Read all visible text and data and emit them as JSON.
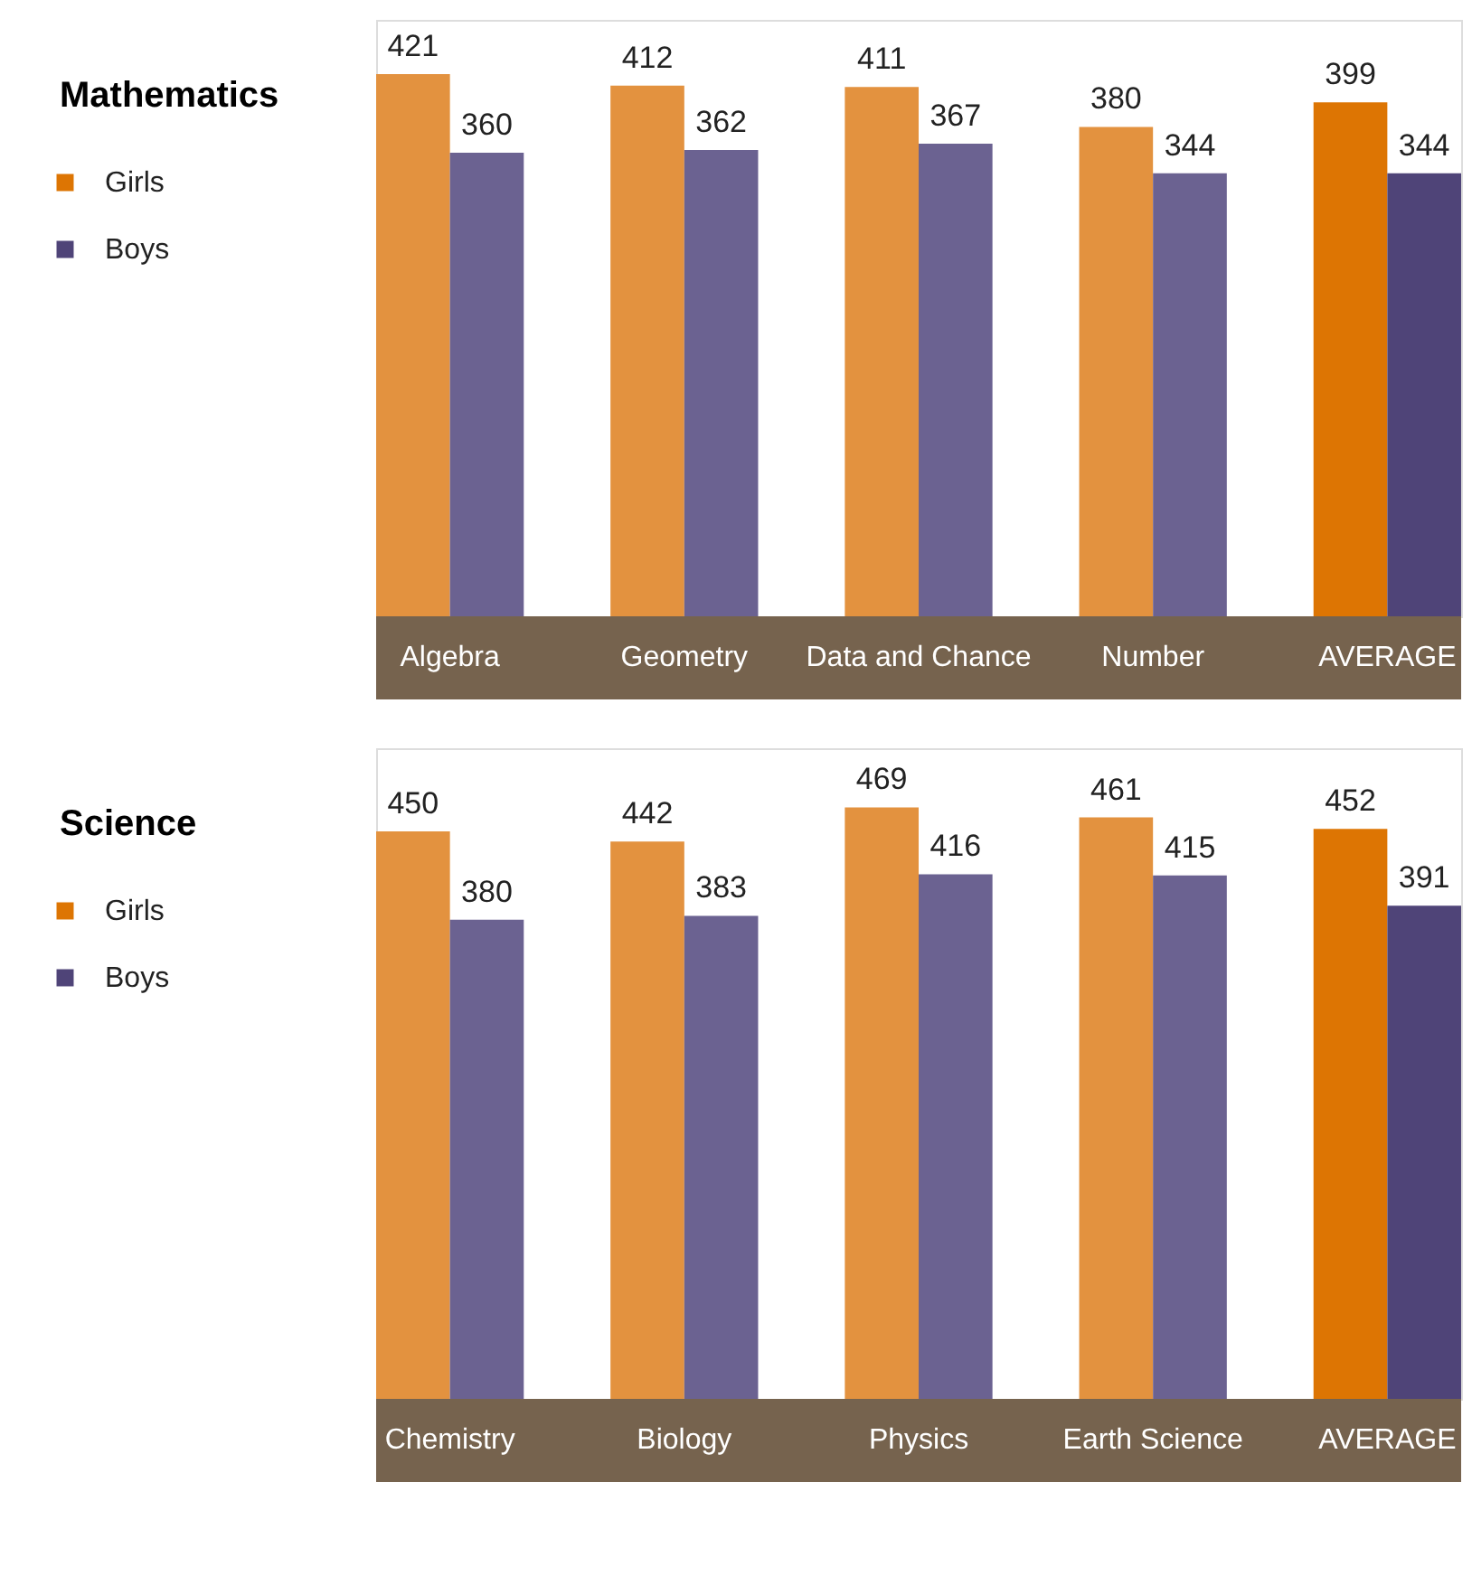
{
  "chart_data": [
    {
      "type": "bar",
      "title": "Mathematics",
      "categories": [
        "Algebra",
        "Geometry",
        "Data and Chance",
        "Number",
        "AVERAGE"
      ],
      "data_labels": true,
      "legend": "left",
      "series": [
        {
          "name": "Girls",
          "color": "#dd7503",
          "colors": [
            "#e3923f",
            "#e3923f",
            "#e3923f",
            "#e3923f",
            "#dd7503"
          ],
          "values": [
            421,
            412,
            411,
            380,
            399
          ]
        },
        {
          "name": "Boys",
          "color": "#4f4478",
          "colors": [
            "#6b6291",
            "#6b6291",
            "#6b6291",
            "#6b6291",
            "#4f4478"
          ],
          "values": [
            360,
            362,
            367,
            344,
            344
          ]
        }
      ]
    },
    {
      "type": "bar",
      "title": "Science",
      "categories": [
        "Chemistry",
        "Biology",
        "Physics",
        "Earth Science",
        "AVERAGE"
      ],
      "data_labels": true,
      "legend": "left",
      "series": [
        {
          "name": "Girls",
          "color": "#dd7503",
          "colors": [
            "#e3923f",
            "#e3923f",
            "#e3923f",
            "#e3923f",
            "#dd7503"
          ],
          "values": [
            450,
            442,
            469,
            461,
            452
          ]
        },
        {
          "name": "Boys",
          "color": "#4f4478",
          "colors": [
            "#6b6291",
            "#6b6291",
            "#6b6291",
            "#6b6291",
            "#4f4478"
          ],
          "values": [
            380,
            383,
            416,
            415,
            391
          ]
        }
      ]
    }
  ]
}
